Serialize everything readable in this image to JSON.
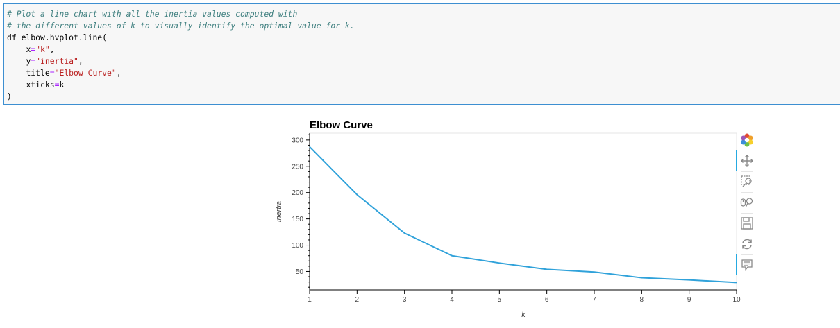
{
  "code": {
    "comment1": "# Plot a line chart with all the inertia values computed with",
    "comment2": "# the different values of k to visually identify the optimal value for k.",
    "call_name": "df_elbow.hvplot.line(",
    "arg_x_name": "x",
    "arg_x_value": "\"k\"",
    "arg_y_name": "y",
    "arg_y_value": "\"inertia\"",
    "arg_title_name": "title",
    "arg_title_value": "\"Elbow Curve\"",
    "arg_xticks_name": "xticks",
    "arg_xticks_value": "k",
    "eq": "=",
    "comma": ",",
    "close_paren": ")"
  },
  "chart_data": {
    "type": "line",
    "title": "Elbow Curve",
    "xlabel": "k",
    "ylabel": "inertia",
    "x": [
      1,
      2,
      3,
      4,
      5,
      6,
      7,
      8,
      9,
      10
    ],
    "series": [
      {
        "values": [
          287,
          196,
          123,
          80,
          66,
          54,
          49,
          38,
          34,
          29
        ]
      }
    ],
    "x_ticks": [
      "1",
      "2",
      "3",
      "4",
      "5",
      "6",
      "7",
      "8",
      "9",
      "10"
    ],
    "y_ticks": [
      "50",
      "100",
      "150",
      "200",
      "250",
      "300"
    ],
    "xlim": [
      1,
      10
    ],
    "ylim": [
      15,
      313
    ],
    "line_color": "#30a2da",
    "grid": false
  },
  "toolbar": {
    "tools": [
      "bokeh-logo-icon",
      "pan-icon",
      "box-zoom-icon",
      "wheel-zoom-icon",
      "save-icon",
      "reset-icon",
      "hover-icon"
    ],
    "active_color": "#26aae1"
  }
}
